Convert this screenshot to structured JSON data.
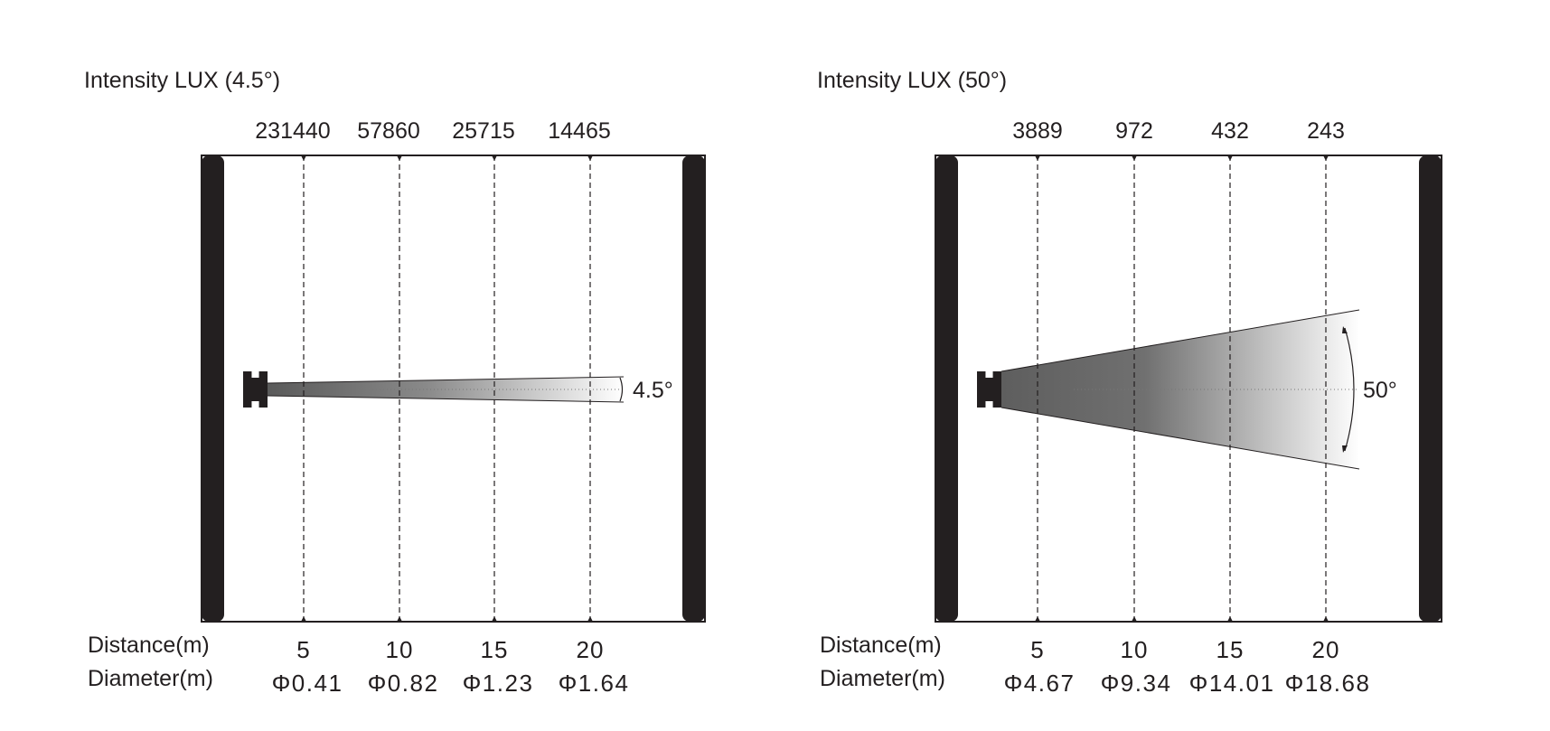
{
  "panels": [
    {
      "title": "Intensity LUX (4.5°)",
      "beam_angle_deg": 4.5,
      "angle_label": "4.5°",
      "lux": [
        "231440",
        "57860",
        "25715",
        "14465"
      ],
      "distance_label": "Distance(m)",
      "distances": [
        "5",
        "10",
        "15",
        "20"
      ],
      "diameter_label": "Diameter(m)",
      "diameters": [
        "Φ0.41",
        "Φ0.82",
        "Φ1.23",
        "Φ1.64"
      ]
    },
    {
      "title": "Intensity LUX (50°)",
      "beam_angle_deg": 50,
      "angle_label": "50°",
      "lux": [
        "3889",
        "972",
        "432",
        "243"
      ],
      "distance_label": "Distance(m)",
      "distances": [
        "5",
        "10",
        "15",
        "20"
      ],
      "diameter_label": "Diameter(m)",
      "diameters": [
        "Φ4.67",
        "Φ9.34",
        "Φ14.01",
        "Φ18.68"
      ]
    }
  ],
  "colors": {
    "frame": "#231f20",
    "beam_dark": "#555555",
    "beam_light": "#ffffff"
  }
}
